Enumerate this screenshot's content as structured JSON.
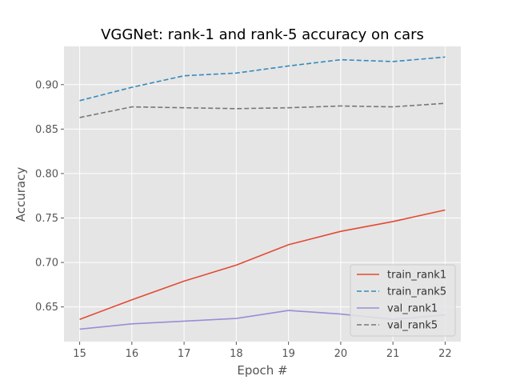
{
  "chart_data": {
    "type": "line",
    "title": "VGGNet: rank-1 and rank-5 accuracy on cars",
    "xlabel": "Epoch #",
    "ylabel": "Accuracy",
    "x": [
      15,
      16,
      17,
      18,
      19,
      20,
      21,
      22
    ],
    "xlim": [
      14.7,
      22.3
    ],
    "ylim": [
      0.611,
      0.943
    ],
    "xticks": [
      "15",
      "16",
      "17",
      "18",
      "19",
      "20",
      "21",
      "22"
    ],
    "yticks": [
      {
        "value": 0.65,
        "label": "0.65"
      },
      {
        "value": 0.7,
        "label": "0.70"
      },
      {
        "value": 0.75,
        "label": "0.75"
      },
      {
        "value": 0.8,
        "label": "0.80"
      },
      {
        "value": 0.85,
        "label": "0.85"
      },
      {
        "value": 0.9,
        "label": "0.90"
      }
    ],
    "grid": true,
    "legend_position": "bottom-right",
    "series": [
      {
        "name": "train_rank1",
        "color": "#E24A33",
        "dash": "solid",
        "values": [
          0.636,
          0.658,
          0.679,
          0.697,
          0.72,
          0.735,
          0.746,
          0.759
        ]
      },
      {
        "name": "train_rank5",
        "color": "#348ABD",
        "dash": "dashed",
        "values": [
          0.882,
          0.897,
          0.91,
          0.913,
          0.921,
          0.928,
          0.926,
          0.931
        ]
      },
      {
        "name": "val_rank1",
        "color": "#988ED5",
        "dash": "solid",
        "values": [
          0.625,
          0.631,
          0.634,
          0.637,
          0.646,
          0.642,
          0.636,
          0.641
        ]
      },
      {
        "name": "val_rank5",
        "color": "#777777",
        "dash": "dashed",
        "values": [
          0.863,
          0.875,
          0.874,
          0.873,
          0.874,
          0.876,
          0.875,
          0.879
        ]
      }
    ]
  }
}
